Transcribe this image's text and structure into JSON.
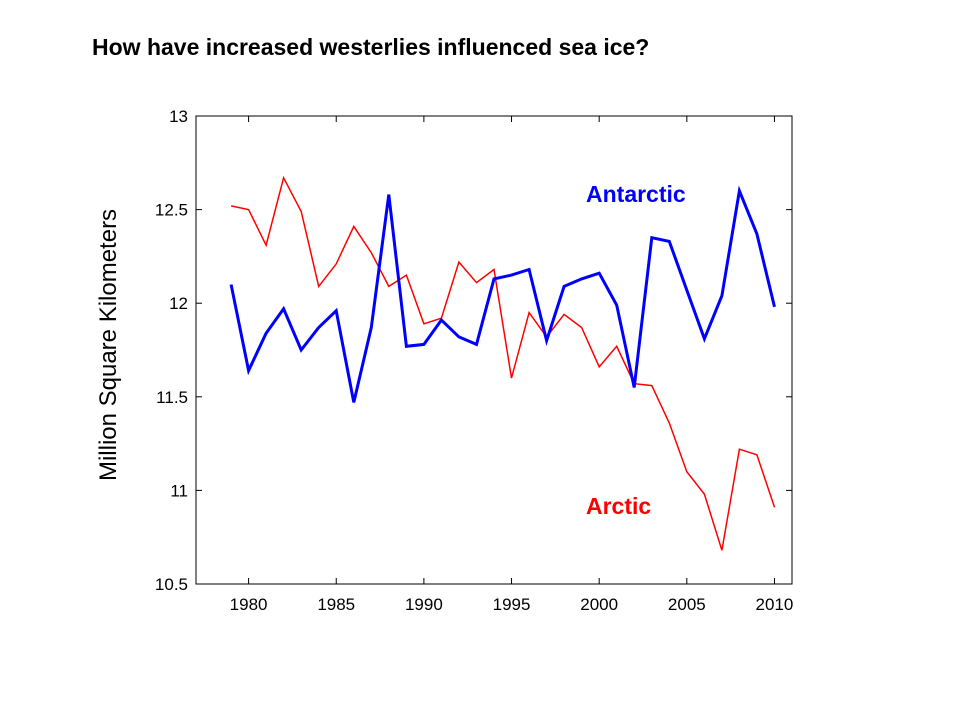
{
  "title": "How have increased westerlies influenced sea ice?",
  "chart_data": {
    "type": "line",
    "title": "",
    "xlabel": "",
    "ylabel": "Million Square Kilometers",
    "xlim": [
      1977,
      2011
    ],
    "ylim": [
      10.5,
      13
    ],
    "x_ticks": [
      1980,
      1985,
      1990,
      1995,
      2000,
      2005,
      2010
    ],
    "y_ticks": [
      10.5,
      11,
      11.5,
      12,
      12.5,
      13
    ],
    "grid": false,
    "x": [
      1979,
      1980,
      1981,
      1982,
      1983,
      1984,
      1985,
      1986,
      1987,
      1988,
      1989,
      1990,
      1991,
      1992,
      1993,
      1994,
      1995,
      1996,
      1997,
      1998,
      1999,
      2000,
      2001,
      2002,
      2003,
      2004,
      2005,
      2006,
      2007,
      2008,
      2009,
      2010
    ],
    "series": [
      {
        "name": "Antarctic",
        "color": "#0000ff",
        "values": [
          12.1,
          11.64,
          11.84,
          11.97,
          11.75,
          11.87,
          11.96,
          11.47,
          11.87,
          12.58,
          11.77,
          11.78,
          11.91,
          11.82,
          11.78,
          12.13,
          12.15,
          12.18,
          11.8,
          12.09,
          12.13,
          12.16,
          11.99,
          11.55,
          12.35,
          12.33,
          12.07,
          11.81,
          12.04,
          12.6,
          12.37,
          11.98
        ]
      },
      {
        "name": "Arctic",
        "color": "#ff0000",
        "values": [
          12.52,
          12.5,
          12.31,
          12.67,
          12.49,
          12.09,
          12.21,
          12.41,
          12.27,
          12.09,
          12.15,
          11.89,
          11.92,
          12.22,
          12.11,
          12.18,
          11.6,
          11.95,
          11.82,
          11.94,
          11.87,
          11.66,
          11.77,
          11.57,
          11.56,
          11.36,
          11.1,
          10.98,
          10.68,
          11.22,
          11.19,
          10.91
        ]
      }
    ]
  }
}
